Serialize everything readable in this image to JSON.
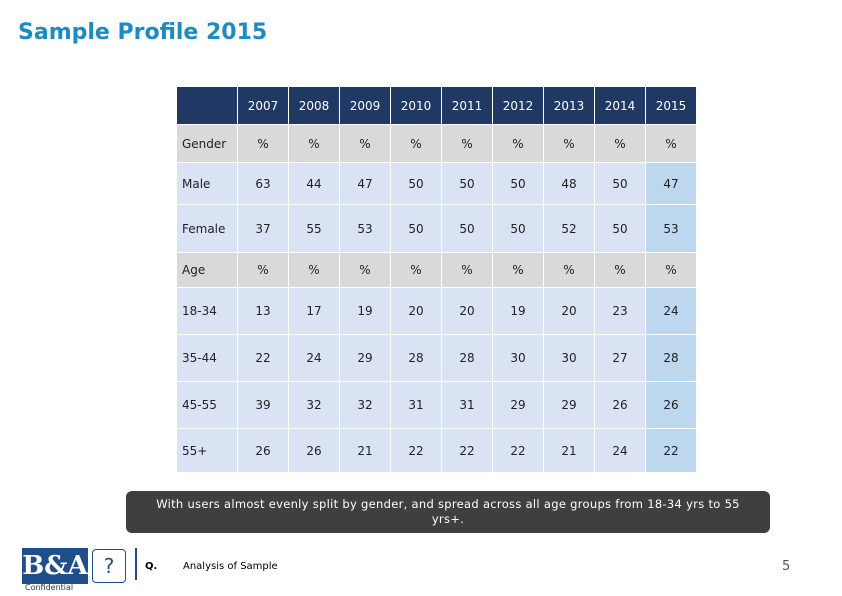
{
  "title": "Sample Profile 2015",
  "table": {
    "header": [
      "2007",
      "2008",
      "2009",
      "2010",
      "2011",
      "2012",
      "2013",
      "2014",
      "2015"
    ],
    "rows": [
      {
        "label": "Gender",
        "cells": [
          "%",
          "%",
          "%",
          "%",
          "%",
          "%",
          "%",
          "%",
          "%"
        ]
      },
      {
        "label": "Male",
        "cells": [
          63,
          44,
          47,
          50,
          50,
          50,
          48,
          50,
          47
        ]
      },
      {
        "label": "Female",
        "cells": [
          37,
          55,
          53,
          50,
          50,
          50,
          52,
          50,
          53
        ]
      },
      {
        "label": "Age",
        "cells": [
          "%",
          "%",
          "%",
          "%",
          "%",
          "%",
          "%",
          "%",
          "%"
        ]
      },
      {
        "label": "18-34",
        "cells": [
          13,
          17,
          19,
          20,
          20,
          19,
          20,
          23,
          24
        ]
      },
      {
        "label": "35-44",
        "cells": [
          22,
          24,
          29,
          28,
          28,
          30,
          30,
          27,
          28
        ]
      },
      {
        "label": "45-55",
        "cells": [
          39,
          32,
          32,
          31,
          31,
          29,
          29,
          26,
          26
        ]
      },
      {
        "label": "55+",
        "cells": [
          26,
          26,
          21,
          22,
          22,
          22,
          21,
          24,
          22
        ]
      }
    ]
  },
  "callout": "With users almost evenly split by gender, and spread across all age groups from 18-34 yrs to 55 yrs+.",
  "footer": {
    "logo": "B&A",
    "help": "?",
    "q": "Q.",
    "question": "Analysis of Sample",
    "page": "5",
    "confidential": "Confidential"
  }
}
